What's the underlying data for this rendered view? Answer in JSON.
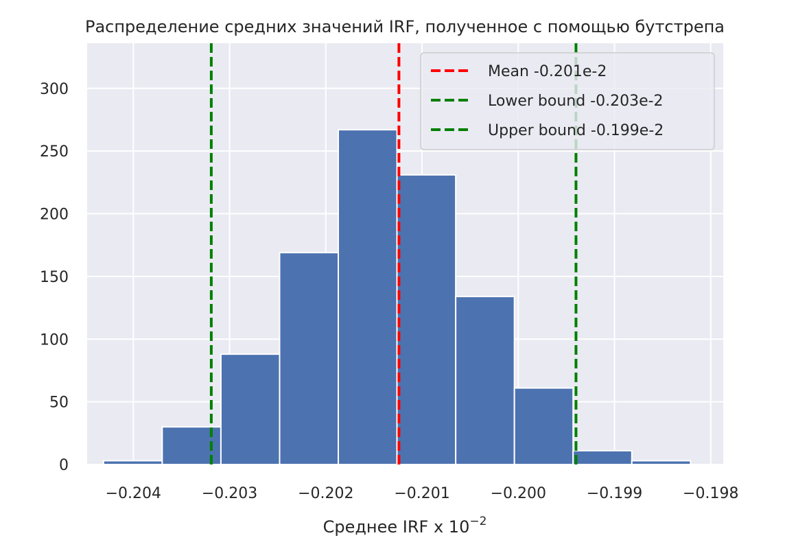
{
  "chart_data": {
    "type": "bar",
    "title": "Распределение средних значений IRF, полученное с помощью бутстрепа",
    "xlabel": "Среднее IRF x 10",
    "xlabel_exponent": "−2",
    "ylabel": "",
    "xlim": [
      -0.20448,
      -0.19787
    ],
    "ylim": [
      0,
      336
    ],
    "grid": true,
    "x_ticks": [
      {
        "value": -0.204,
        "label": "−0.204"
      },
      {
        "value": -0.203,
        "label": "−0.203"
      },
      {
        "value": -0.202,
        "label": "−0.202"
      },
      {
        "value": -0.201,
        "label": "−0.201"
      },
      {
        "value": -0.2,
        "label": "−0.200"
      },
      {
        "value": -0.199,
        "label": "−0.199"
      },
      {
        "value": -0.198,
        "label": "−0.198"
      }
    ],
    "y_ticks": [
      {
        "value": 0,
        "label": "0"
      },
      {
        "value": 50,
        "label": "50"
      },
      {
        "value": 100,
        "label": "100"
      },
      {
        "value": 150,
        "label": "150"
      },
      {
        "value": 200,
        "label": "200"
      },
      {
        "value": 250,
        "label": "250"
      },
      {
        "value": 300,
        "label": "300"
      }
    ],
    "bins": [
      {
        "x0": -0.20431,
        "x1": -0.2037,
        "count": 3
      },
      {
        "x0": -0.2037,
        "x1": -0.20309,
        "count": 30
      },
      {
        "x0": -0.20309,
        "x1": -0.20248,
        "count": 88
      },
      {
        "x0": -0.20248,
        "x1": -0.20187,
        "count": 169
      },
      {
        "x0": -0.20187,
        "x1": -0.20126,
        "count": 267
      },
      {
        "x0": -0.20126,
        "x1": -0.20065,
        "count": 231
      },
      {
        "x0": -0.20065,
        "x1": -0.20004,
        "count": 134
      },
      {
        "x0": -0.20004,
        "x1": -0.19943,
        "count": 61
      },
      {
        "x0": -0.19943,
        "x1": -0.19882,
        "count": 11
      },
      {
        "x0": -0.19882,
        "x1": -0.19821,
        "count": 3
      }
    ],
    "vlines": [
      {
        "name": "mean",
        "x": -0.20124,
        "color": "#ff0000",
        "label": "Mean -0.201e-2"
      },
      {
        "name": "lower-bound",
        "x": -0.20319,
        "color": "#008000",
        "label": "Lower bound -0.203e-2"
      },
      {
        "name": "upper-bound",
        "x": -0.1994,
        "color": "#008000",
        "label": "Upper bound -0.199e-2"
      }
    ],
    "legend_position": "top-right",
    "colors": {
      "bar": "#4c72b0",
      "plot_background": "#eaeaf2",
      "grid": "#ffffff"
    }
  }
}
